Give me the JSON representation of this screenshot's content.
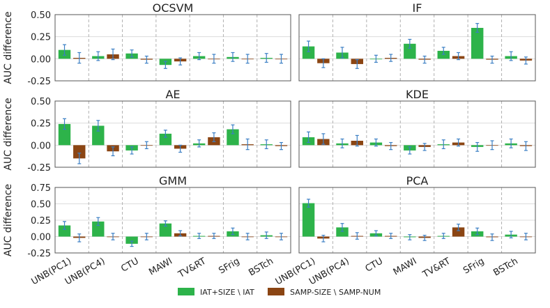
{
  "colors": {
    "series1": "#2db34a",
    "series2": "#8b4513",
    "errorbar": "#3b7fc4",
    "grid": "#dcdcdc",
    "axis": "#555555",
    "divider": "#b0b0b0"
  },
  "chart_data": {
    "type": "bar",
    "ylabel": "AUC difference",
    "categories": [
      "UNB(PC1)",
      "UNB(PC4)",
      "CTU",
      "MAWI",
      "TV&RT",
      "SFrig",
      "BSTch"
    ],
    "legend": {
      "position": "bottom-center",
      "entries": [
        "IAT+SIZE \\ IAT",
        "SAMP-SIZE \\ SAMP-NUM"
      ]
    },
    "panels": [
      {
        "title": "OCSVM",
        "ylim": [
          -0.25,
          0.5
        ],
        "yticks": [
          "-0.25",
          "0.00",
          "0.25",
          "0.50"
        ],
        "yticks_values": [
          -0.25,
          0,
          0.25,
          0.5
        ],
        "series": [
          {
            "name": "IAT+SIZE \\ IAT",
            "values": [
              0.1,
              0.03,
              0.06,
              -0.07,
              0.03,
              0.02,
              0.01
            ],
            "err": [
              0.06,
              0.05,
              0.04,
              0.04,
              0.04,
              0.05,
              0.05
            ]
          },
          {
            "name": "SAMP-SIZE \\ SAMP-NUM",
            "values": [
              0.01,
              0.05,
              -0.01,
              -0.03,
              0.0,
              0.0,
              0.0
            ],
            "err": [
              0.06,
              0.06,
              0.04,
              0.04,
              0.05,
              0.05,
              0.05
            ]
          }
        ]
      },
      {
        "title": "IF",
        "ylim": [
          -0.25,
          0.5
        ],
        "yticks": [
          "-0.25",
          "0.00",
          "0.25",
          "0.50"
        ],
        "yticks_values": [
          -0.25,
          0,
          0.25,
          0.5
        ],
        "series": [
          {
            "name": "IAT+SIZE \\ IAT",
            "values": [
              0.14,
              0.07,
              0.0,
              0.17,
              0.09,
              0.35,
              0.03
            ],
            "err": [
              0.06,
              0.06,
              0.04,
              0.05,
              0.04,
              0.05,
              0.05
            ]
          },
          {
            "name": "SAMP-SIZE \\ SAMP-NUM",
            "values": [
              -0.05,
              -0.06,
              0.01,
              -0.01,
              0.03,
              -0.01,
              -0.02
            ],
            "err": [
              0.05,
              0.05,
              0.04,
              0.04,
              0.04,
              0.04,
              0.04
            ]
          }
        ]
      },
      {
        "title": "AE",
        "ylim": [
          -0.25,
          0.5
        ],
        "yticks": [
          "-0.25",
          "0.00",
          "0.25",
          "0.50"
        ],
        "yticks_values": [
          -0.25,
          0,
          0.25,
          0.5
        ],
        "series": [
          {
            "name": "IAT+SIZE \\ IAT",
            "values": [
              0.24,
              0.22,
              -0.06,
              0.13,
              0.02,
              0.18,
              0.01
            ],
            "err": [
              0.06,
              0.06,
              0.04,
              0.04,
              0.04,
              0.05,
              0.05
            ]
          },
          {
            "name": "SAMP-SIZE \\ SAMP-NUM",
            "values": [
              -0.15,
              -0.07,
              0.0,
              -0.04,
              0.09,
              0.01,
              -0.01
            ],
            "err": [
              0.06,
              0.05,
              0.04,
              0.04,
              0.05,
              0.06,
              0.04
            ]
          }
        ]
      },
      {
        "title": "KDE",
        "ylim": [
          -0.25,
          0.5
        ],
        "yticks": [
          "-0.25",
          "0.00",
          "0.25",
          "0.50"
        ],
        "yticks_values": [
          -0.25,
          0,
          0.25,
          0.5
        ],
        "series": [
          {
            "name": "IAT+SIZE \\ IAT",
            "values": [
              0.09,
              0.02,
              0.03,
              -0.06,
              0.01,
              -0.02,
              0.02
            ],
            "err": [
              0.06,
              0.05,
              0.04,
              0.04,
              0.05,
              0.05,
              0.05
            ]
          },
          {
            "name": "SAMP-SIZE \\ SAMP-NUM",
            "values": [
              0.07,
              0.05,
              -0.01,
              -0.02,
              0.03,
              0.0,
              -0.01
            ],
            "err": [
              0.06,
              0.06,
              0.04,
              0.04,
              0.04,
              0.05,
              0.05
            ]
          }
        ]
      },
      {
        "title": "GMM",
        "ylim": [
          -0.25,
          0.75
        ],
        "yticks": [
          "-0.25",
          "0.00",
          "0.25",
          "0.50",
          "0.75"
        ],
        "yticks_values": [
          -0.25,
          0,
          0.25,
          0.5,
          0.75
        ],
        "series": [
          {
            "name": "IAT+SIZE \\ IAT",
            "values": [
              0.17,
              0.23,
              -0.11,
              0.2,
              0.01,
              0.08,
              0.02
            ],
            "err": [
              0.06,
              0.06,
              0.04,
              0.04,
              0.04,
              0.05,
              0.05
            ]
          },
          {
            "name": "SAMP-SIZE \\ SAMP-NUM",
            "values": [
              -0.02,
              0.0,
              0.0,
              0.05,
              0.01,
              0.0,
              0.0
            ],
            "err": [
              0.06,
              0.05,
              0.05,
              0.04,
              0.04,
              0.05,
              0.05
            ]
          }
        ]
      },
      {
        "title": "PCA",
        "ylim": [
          -0.25,
          0.75
        ],
        "yticks": [
          "-0.25",
          "0.00",
          "0.25",
          "0.50",
          "0.75"
        ],
        "yticks_values": [
          -0.25,
          0,
          0.25,
          0.5,
          0.75
        ],
        "series": [
          {
            "name": "IAT+SIZE \\ IAT",
            "values": [
              0.51,
              0.14,
              0.05,
              -0.01,
              0.01,
              0.08,
              0.03
            ],
            "err": [
              0.06,
              0.06,
              0.04,
              0.04,
              0.04,
              0.05,
              0.05
            ]
          },
          {
            "name": "SAMP-SIZE \\ SAMP-NUM",
            "values": [
              -0.03,
              0.01,
              0.01,
              -0.02,
              0.14,
              -0.01,
              0.0
            ],
            "err": [
              0.05,
              0.05,
              0.04,
              0.04,
              0.05,
              0.05,
              0.05
            ]
          }
        ]
      }
    ]
  }
}
